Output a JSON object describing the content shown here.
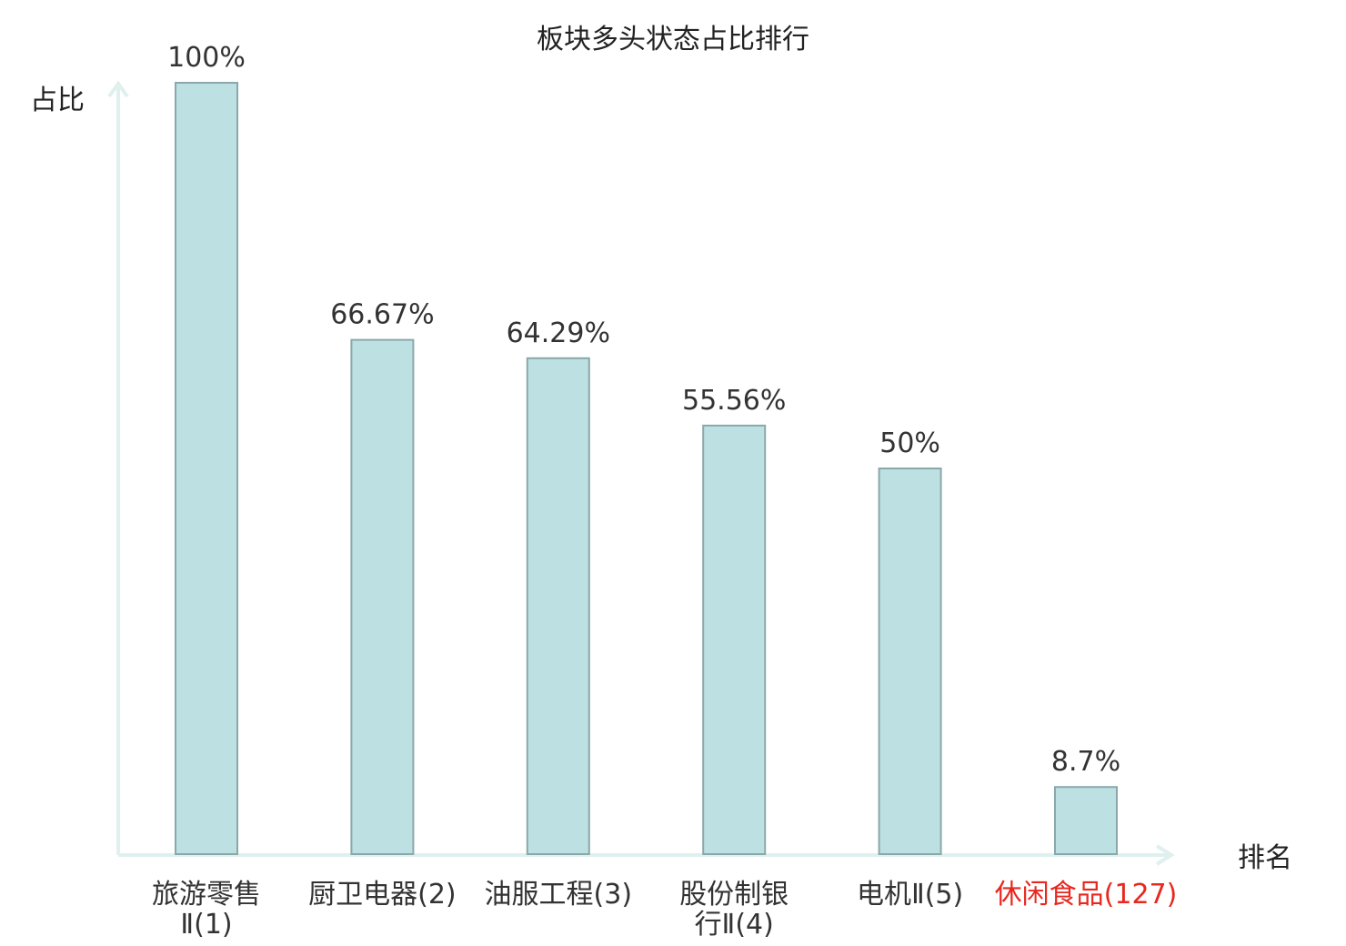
{
  "chart_data": {
    "type": "bar",
    "title": "板块多头状态占比排行",
    "ylabel": "占比",
    "xlabel": "排名",
    "ylim": [
      0,
      100
    ],
    "categories": [
      {
        "name": "旅游零售Ⅱ",
        "rank": "(1)",
        "lines": [
          "旅游零售",
          "Ⅱ(1)"
        ],
        "highlight": false
      },
      {
        "name": "厨卫电器",
        "rank": "(2)",
        "lines": [
          "厨卫电器(2)"
        ],
        "highlight": false
      },
      {
        "name": "油服工程",
        "rank": "(3)",
        "lines": [
          "油服工程(3)"
        ],
        "highlight": false
      },
      {
        "name": "股份制银行Ⅱ",
        "rank": "(4)",
        "lines": [
          "股份制银",
          "行Ⅱ(4)"
        ],
        "highlight": false
      },
      {
        "name": "电机Ⅱ",
        "rank": "(5)",
        "lines": [
          "电机Ⅱ(5)"
        ],
        "highlight": false
      },
      {
        "name": "休闲食品",
        "rank": "(127)",
        "lines": [
          "休闲食品(127)"
        ],
        "highlight": true
      }
    ],
    "values": [
      100,
      66.67,
      64.29,
      55.56,
      50,
      8.7
    ],
    "value_labels": [
      "100%",
      "66.67%",
      "64.29%",
      "55.56%",
      "50%",
      "8.7%"
    ],
    "grid": false,
    "legend": "none"
  },
  "colors": {
    "bar_fill": "#bde0e3",
    "bar_stroke": "#8aa8ab",
    "axis": "#dff0ee",
    "highlight_text": "#e8281f",
    "text": "#333333"
  }
}
